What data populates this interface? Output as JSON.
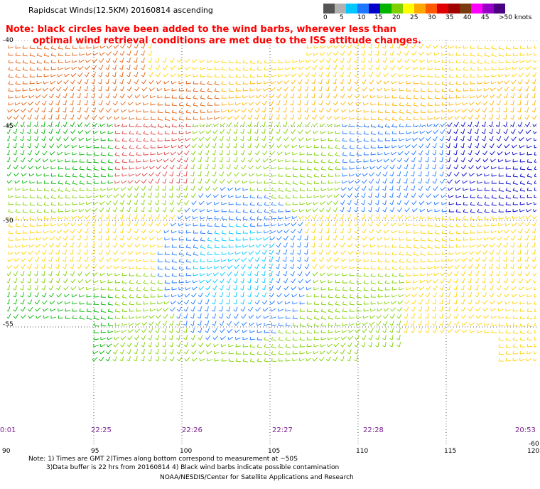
{
  "title": "Rapidscat Winds(12.5KM) 20160814 ascending",
  "note": {
    "line1": "Note: black circles have been added to the wind barbs, wherever less than",
    "line2": "optimal wind retrieval conditions are met due to the ISS attitude changes."
  },
  "colorbar": {
    "labels": [
      "0",
      "5",
      "10",
      "15",
      "20",
      "25",
      "30",
      "35",
      "40",
      "45",
      ">50 knots"
    ],
    "colors": [
      "#555555",
      "#b0b0b0",
      "#00c8ff",
      "#1e78ff",
      "#0000c8",
      "#00b400",
      "#7fd000",
      "#ffff00",
      "#ffa800",
      "#ff5a00",
      "#e00000",
      "#a00000",
      "#7a3a10",
      "#ff00ff",
      "#9800c8",
      "#4a0080"
    ]
  },
  "lat_labels": [
    "-40",
    "-45",
    "-50",
    "-55",
    "-60"
  ],
  "lon_labels": [
    "90",
    "95",
    "100",
    "105",
    "110",
    "115",
    "120"
  ],
  "time_labels": [
    "0:01",
    "22:25",
    "22:26",
    "22:27",
    "22:28",
    "20:53"
  ],
  "footer": {
    "line1": "Note: 1) Times are GMT 2)Times along bottom correspond to measurement at ~50S",
    "line2": "3)Data buffer is 22 hrs from 20160814 4) Black wind barbs indicate possible contamination",
    "credit": "NOAA/NESDIS/Center for Satellite Applications and Research"
  }
}
